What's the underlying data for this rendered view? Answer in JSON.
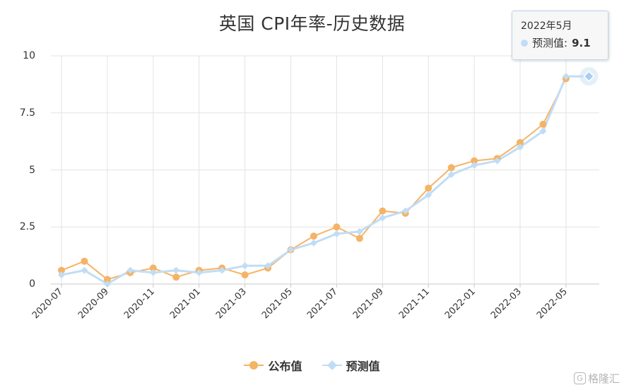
{
  "chart_data": {
    "type": "line",
    "title": "英国 CPI年率-历史数据",
    "x": [
      "2020-07",
      "2020-08",
      "2020-09",
      "2020-10",
      "2020-11",
      "2020-12",
      "2021-01",
      "2021-02",
      "2021-03",
      "2021-04",
      "2021-05",
      "2021-06",
      "2021-07",
      "2021-08",
      "2021-09",
      "2021-10",
      "2021-11",
      "2021-12",
      "2022-01",
      "2022-02",
      "2022-03",
      "2022-04",
      "2022-05",
      "2022-06"
    ],
    "x_tick_labels": [
      "2020-07",
      "2020-09",
      "2020-11",
      "2021-01",
      "2021-03",
      "2021-05",
      "2021-07",
      "2021-09",
      "2021-11",
      "2022-01",
      "2022-03",
      "2022-05"
    ],
    "y_tick_labels": [
      "0",
      "2.5",
      "5",
      "7.5",
      "10"
    ],
    "ylim": [
      0,
      10
    ],
    "grid": true,
    "legend_position": "bottom",
    "series": [
      {
        "name": "公布值",
        "color": "#f5b366",
        "marker": "circle",
        "values": [
          0.6,
          1.0,
          0.2,
          0.5,
          0.7,
          0.3,
          0.6,
          0.7,
          0.4,
          0.7,
          1.5,
          2.1,
          2.5,
          2.0,
          3.2,
          3.1,
          4.2,
          5.1,
          5.4,
          5.5,
          6.2,
          7.0,
          9.0,
          null
        ]
      },
      {
        "name": "预测值",
        "color": "#c1ddf5",
        "marker": "diamond",
        "values": [
          0.4,
          0.6,
          0.0,
          0.6,
          0.5,
          0.6,
          0.5,
          0.6,
          0.8,
          0.8,
          1.5,
          1.8,
          2.2,
          2.3,
          2.9,
          3.2,
          3.9,
          4.8,
          5.2,
          5.4,
          6.0,
          6.7,
          9.1,
          9.1
        ]
      }
    ]
  },
  "tooltip": {
    "date": "2022年5月",
    "series_label": "预测值:",
    "value": "9.1"
  },
  "watermark": {
    "icon_name": "gelonghui-logo-icon",
    "text": "格隆汇"
  }
}
